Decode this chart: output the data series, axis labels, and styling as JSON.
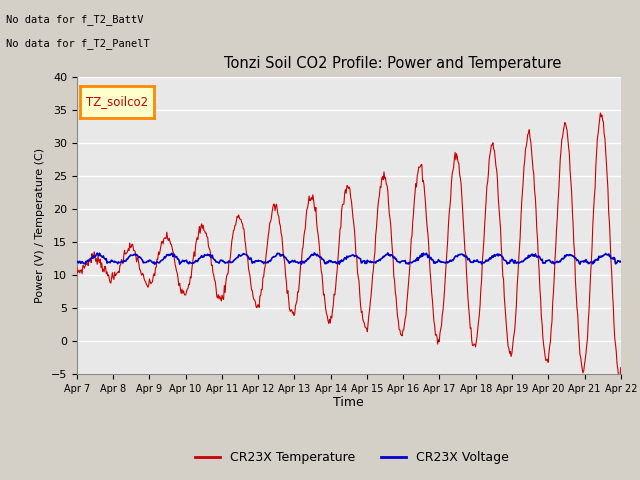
{
  "title": "Tonzi Soil CO2 Profile: Power and Temperature",
  "ylabel": "Power (V) / Temperature (C)",
  "xlabel": "Time",
  "xlabels": [
    "Apr 7",
    "Apr 8",
    "Apr 9",
    "Apr 10",
    "Apr 11",
    "Apr 12",
    "Apr 13",
    "Apr 14",
    "Apr 15",
    "Apr 16",
    "Apr 17",
    "Apr 18",
    "Apr 19",
    "Apr 20",
    "Apr 21",
    "Apr 22"
  ],
  "ylim": [
    -5,
    40
  ],
  "yticks": [
    -5,
    0,
    5,
    10,
    15,
    20,
    25,
    30,
    35,
    40
  ],
  "legend_labels": [
    "CR23X Temperature",
    "CR23X Voltage"
  ],
  "annotation_lines": [
    "No data for f_T2_BattV",
    "No data for f_T2_PanelT"
  ],
  "inset_label": "TZ_soilco2",
  "temp_color": "#cc0000",
  "volt_color": "#0000cc",
  "fig_bg": "#d4d0c8",
  "plot_bg": "#e8e8e8",
  "grid_color": "#ffffff"
}
